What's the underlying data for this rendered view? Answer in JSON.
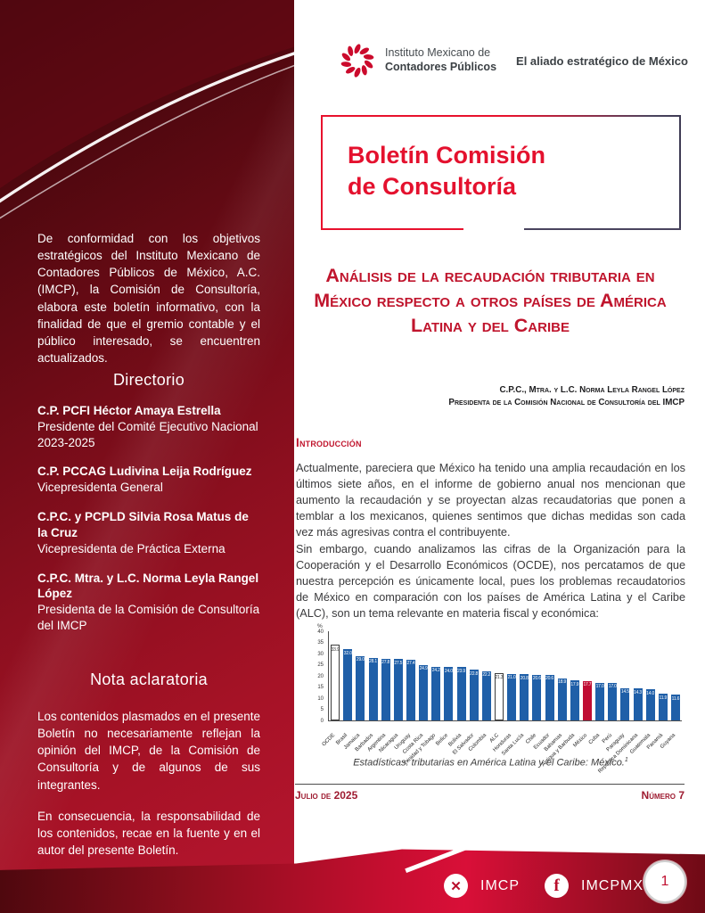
{
  "header": {
    "logo_line1": "Instituto Mexicano de",
    "logo_line2": "Contadores Públicos",
    "tagline": "El aliado estratégico de México"
  },
  "banner": {
    "title_line1": "Boletín Comisión",
    "title_line2": "de Consultoría"
  },
  "sidebar": {
    "intro": "De conformidad con los objetivos estratégicos del Instituto Mexicano de Contadores Públicos de México, A.C. (IMCP), la Comisión de Consultoría, elabora este boletín informativo, con la finalidad de que el gremio contable y el público interesado, se encuentren actualizados.",
    "directory_title": "Directorio",
    "directory": [
      {
        "name": "C.P. PCFI Héctor Amaya Estrella",
        "role": "Presidente del Comité Ejecutivo Nacional 2023-2025"
      },
      {
        "name": "C.P. PCCAG Ludivina Leija Rodríguez",
        "role": "Vicepresidenta General"
      },
      {
        "name": "C.P.C. y PCPLD Silvia Rosa Matus de la Cruz",
        "role": "Vicepresidenta de Práctica Externa"
      },
      {
        "name": "C.P.C. Mtra. y L.C. Norma Leyla Rangel López",
        "role": "Presidenta de la Comisión de Consultoría del IMCP"
      }
    ],
    "note_title": "Nota aclaratoria",
    "note_paragraphs": [
      "Los contenidos plasmados en el presente Boletín no necesariamente reflejan la opinión del IMCP, de la Comisión de Consultoría y de algunos de sus integrantes.",
      "En consecuencia, la responsabilidad de los contenidos, recae en la fuente y en el autor del presente Boletín."
    ]
  },
  "article": {
    "title": "Análisis de la recaudación tributaria en México respecto a otros países de América Latina y del Caribe",
    "author_line1": "C.P.C., Mtra. y L.C. Norma Leyla Rangel López",
    "author_line2": "Presidenta de la Comisión Nacional de Consultoría del IMCP",
    "section_heading": "Introducción",
    "paragraph1": "Actualmente, pareciera que México ha tenido una amplia recaudación en los últimos siete años, en el informe de gobierno anual nos mencionan que aumento la recaudación y se proyectan alzas recaudatorias que ponen a temblar a los mexicanos, quienes sentimos que dichas medidas son cada vez más agresivas contra el contribuyente.",
    "paragraph2": "Sin embargo, cuando analizamos las cifras de la Organización para la Cooperación y el Desarrollo Económicos (OCDE), nos percatamos de que nuestra percepción es únicamente local, pues los problemas recaudatorios de México en comparación con los países de América Latina y el Caribe (ALC), son un tema relevante en materia fiscal y económica:",
    "figure_caption": "Estadísticas: tributarias en América Latina y el Caribe: México.",
    "figure_footnote_mark": "1"
  },
  "chart_data": {
    "type": "bar",
    "ylabel": "%",
    "ylim": [
      0,
      40
    ],
    "yticks": [
      0,
      5,
      10,
      15,
      20,
      25,
      30,
      35,
      40
    ],
    "grid": false,
    "legend": false,
    "colors": {
      "default": "#1f5fa8",
      "highlight_outline": "#ffffff",
      "highlight_red": "#c00d33"
    },
    "categories": [
      "OCDE",
      "Brasil",
      "Jamaica",
      "Barbados",
      "Argentina",
      "Nicaragua",
      "Uruguay",
      "Costa Rica",
      "Trinidad y Tobago",
      "Belice",
      "Bolivia",
      "El Salvador",
      "Colombia",
      "ALC",
      "Honduras",
      "Santa Lucía",
      "Chile",
      "Ecuador",
      "Bahamas",
      "Antigua y Barbuda",
      "México",
      "Cuba",
      "Perú",
      "Paraguay",
      "República Dominicana",
      "Guatemala",
      "Panamá",
      "Guyana"
    ],
    "values": [
      33.9,
      32.0,
      29.0,
      28.1,
      27.8,
      27.5,
      27.4,
      24.9,
      24.2,
      24.0,
      23.9,
      22.8,
      22.2,
      21.3,
      21.0,
      20.8,
      20.6,
      20.6,
      18.9,
      17.9,
      17.7,
      17.0,
      17.0,
      14.5,
      14.3,
      14.0,
      11.9,
      11.6
    ],
    "bar_styles": [
      "outline",
      "blue",
      "blue",
      "blue",
      "blue",
      "blue",
      "blue",
      "blue",
      "blue",
      "blue",
      "blue",
      "blue",
      "blue",
      "outline",
      "blue",
      "blue",
      "blue",
      "blue",
      "blue",
      "blue",
      "red",
      "blue",
      "blue",
      "blue",
      "blue",
      "blue",
      "blue",
      "blue"
    ]
  },
  "footer": {
    "date": "Julio de 2025",
    "number": "Número 7",
    "x_handle": "IMCP",
    "facebook_handle": "IMCPMX",
    "page_number": "1"
  }
}
